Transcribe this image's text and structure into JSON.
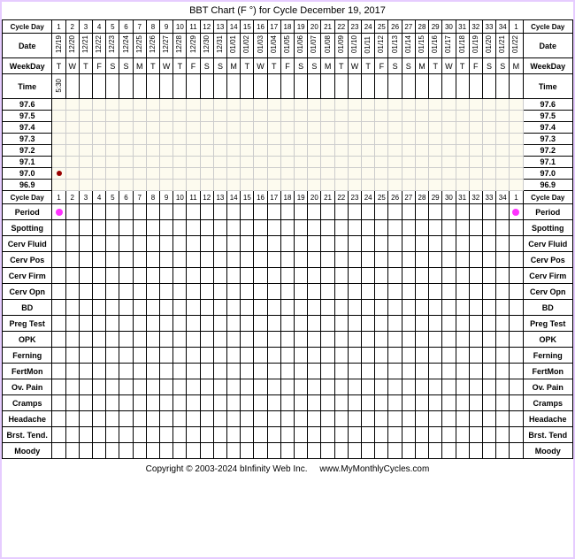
{
  "title": "BBT Chart (F °) for Cycle December 19, 2017",
  "labels": {
    "cycleDay": "Cycle Day",
    "date": "Date",
    "weekDay": "WeekDay",
    "time": "Time"
  },
  "cycleDays": [
    1,
    2,
    3,
    4,
    5,
    6,
    7,
    8,
    9,
    10,
    11,
    12,
    13,
    14,
    15,
    16,
    17,
    18,
    19,
    20,
    21,
    22,
    23,
    24,
    25,
    26,
    27,
    28,
    29,
    30,
    31,
    32,
    33,
    34,
    1
  ],
  "dates": [
    "12/19",
    "12/20",
    "12/21",
    "12/22",
    "12/23",
    "12/24",
    "12/25",
    "12/26",
    "12/27",
    "12/28",
    "12/29",
    "12/30",
    "12/31",
    "01/01",
    "01/02",
    "01/03",
    "01/04",
    "01/05",
    "01/06",
    "01/07",
    "01/08",
    "01/09",
    "01/10",
    "01/11",
    "01/12",
    "01/13",
    "01/14",
    "01/15",
    "01/16",
    "01/17",
    "01/18",
    "01/19",
    "01/20",
    "01/21",
    "01/22"
  ],
  "weekdays": [
    "T",
    "W",
    "T",
    "F",
    "S",
    "S",
    "M",
    "T",
    "W",
    "T",
    "F",
    "S",
    "S",
    "M",
    "T",
    "W",
    "T",
    "F",
    "S",
    "S",
    "M",
    "T",
    "W",
    "T",
    "F",
    "S",
    "S",
    "M",
    "T",
    "W",
    "T",
    "F",
    "S",
    "S",
    "M"
  ],
  "times": [
    "5:30",
    "",
    "",
    "",
    "",
    "",
    "",
    "",
    "",
    "",
    "",
    "",
    "",
    "",
    "",
    "",
    "",
    "",
    "",
    "",
    "",
    "",
    "",
    "",
    "",
    "",
    "",
    "",
    "",
    "",
    "",
    "",
    "",
    "",
    ""
  ],
  "tempLabels": [
    "97.6",
    "97.5",
    "97.4",
    "97.3",
    "97.2",
    "97.1",
    "97.0",
    "96.9"
  ],
  "tempPoint": {
    "day": 1,
    "temp": "97.0"
  },
  "tempGrid": {
    "background": "#fdfbef",
    "gridColor": "#cccccc",
    "pointColor": "#990000"
  },
  "periodMarkers": [
    1,
    35
  ],
  "periodColor": "#ff33ff",
  "trackingRows": [
    "Period",
    "Spotting",
    "Cerv Fluid",
    "Cerv Pos",
    "Cerv Firm",
    "Cerv Opn",
    "BD",
    "Preg Test",
    "OPK",
    "Ferning",
    "FertMon",
    "Ov. Pain",
    "Cramps",
    "Headache",
    "Brst. Tend.",
    "Moody"
  ],
  "trackingRowsRight": [
    "Period",
    "Spotting",
    "Cerv Fluid",
    "Cerv Pos",
    "Cerv Firm",
    "Cerv Opn",
    "BD",
    "Preg Test",
    "OPK",
    "Ferning",
    "FertMon",
    "Ov. Pain",
    "Cramps",
    "Headache",
    "Brst. Tend",
    "Moody"
  ],
  "footer": {
    "copyright": "Copyright © 2003-2024 bInfinity Web Inc.",
    "link": "www.MyMonthlyCycles.com"
  },
  "borderColor": "#e6ccff"
}
